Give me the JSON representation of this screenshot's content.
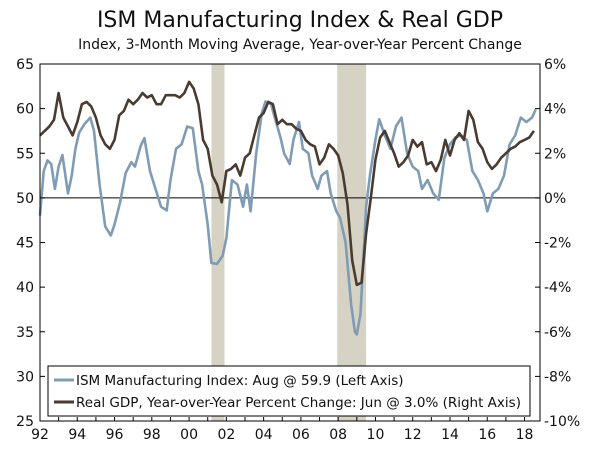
{
  "title": "ISM Manufacturing Index & Real GDP",
  "subtitle": "Index, 3-Month Moving Average, Year-over-Year Percent Change",
  "colors": {
    "ism": "#7f9cb5",
    "gdp": "#4a3b30",
    "recession": "#d6d2c4",
    "frame": "#000000"
  },
  "legend": {
    "ism": "ISM Manufacturing Index: Aug @ 59.9 (Left Axis)",
    "gdp": "Real GDP, Year-over-Year Percent Change: Jun @ 3.0% (Right Axis)"
  },
  "chart_data": {
    "type": "line",
    "grid": false,
    "legend_position": "bottom-left",
    "x_range": [
      1992.0,
      2018.83
    ],
    "y_left_range": [
      25,
      65
    ],
    "y_right_range": [
      -10,
      6
    ],
    "x_tick_labels": [
      "92",
      "94",
      "96",
      "98",
      "00",
      "02",
      "04",
      "06",
      "08",
      "10",
      "12",
      "14",
      "16",
      "18"
    ],
    "x_tick_values": [
      1992,
      1994,
      1996,
      1998,
      2000,
      2002,
      2004,
      2006,
      2008,
      2010,
      2012,
      2014,
      2016,
      2018
    ],
    "y_left_ticks": [
      "25",
      "30",
      "35",
      "40",
      "45",
      "50",
      "55",
      "60",
      "65"
    ],
    "y_right_ticks": [
      "-10%",
      "-8%",
      "-6%",
      "-4%",
      "-2%",
      "0%",
      "2%",
      "4%",
      "6%"
    ],
    "recessions": [
      [
        2001.2,
        2001.9
      ],
      [
        2007.95,
        2009.5
      ]
    ],
    "series": [
      {
        "name": "ISM Manufacturing Index: Aug @ 59.9 (Left Axis)",
        "axis": "left",
        "x": [
          1992.0,
          1992.2,
          1992.4,
          1992.6,
          1992.8,
          1993.0,
          1993.2,
          1993.5,
          1993.7,
          1993.9,
          1994.1,
          1994.4,
          1994.7,
          1994.9,
          1995.2,
          1995.5,
          1995.8,
          1996.0,
          1996.3,
          1996.6,
          1996.9,
          1997.1,
          1997.4,
          1997.6,
          1997.9,
          1998.2,
          1998.5,
          1998.8,
          1999.0,
          1999.3,
          1999.6,
          1999.9,
          2000.2,
          2000.5,
          2000.7,
          2001.0,
          2001.2,
          2001.5,
          2001.8,
          2002.0,
          2002.3,
          2002.6,
          2002.9,
          2003.1,
          2003.3,
          2003.6,
          2003.9,
          2004.1,
          2004.4,
          2004.6,
          2004.9,
          2005.1,
          2005.4,
          2005.6,
          2005.9,
          2006.1,
          2006.4,
          2006.6,
          2006.9,
          2007.1,
          2007.4,
          2007.6,
          2007.9,
          2008.1,
          2008.4,
          2008.7,
          2008.9,
          2009.0,
          2009.2,
          2009.5,
          2009.7,
          2010.0,
          2010.2,
          2010.5,
          2010.8,
          2011.1,
          2011.4,
          2011.7,
          2012.0,
          2012.3,
          2012.5,
          2012.8,
          2013.1,
          2013.4,
          2013.7,
          2014.0,
          2014.3,
          2014.6,
          2014.9,
          2015.2,
          2015.5,
          2015.8,
          2016.0,
          2016.3,
          2016.6,
          2016.9,
          2017.2,
          2017.5,
          2017.8,
          2018.1,
          2018.4,
          2018.6
        ],
        "y": [
          48.0,
          53.0,
          54.2,
          53.8,
          51.0,
          53.5,
          54.8,
          50.5,
          52.5,
          55.5,
          57.3,
          58.3,
          59.0,
          57.5,
          51.5,
          46.8,
          45.8,
          47.0,
          49.5,
          52.8,
          54.0,
          53.5,
          55.8,
          56.7,
          53.0,
          51.0,
          49.0,
          48.6,
          52.0,
          55.5,
          56.0,
          58.0,
          57.8,
          53.0,
          51.5,
          47.0,
          42.7,
          42.6,
          43.5,
          45.5,
          52.0,
          51.5,
          49.0,
          51.5,
          48.5,
          55.0,
          59.5,
          60.8,
          60.5,
          59.0,
          56.8,
          55.0,
          53.8,
          56.5,
          58.5,
          55.5,
          55.0,
          52.5,
          51.0,
          52.5,
          53.0,
          50.5,
          48.5,
          47.8,
          45.0,
          38.0,
          35.0,
          34.7,
          37.0,
          49.0,
          52.5,
          56.5,
          58.8,
          57.0,
          55.5,
          58.0,
          59.0,
          55.0,
          53.5,
          53.0,
          51.0,
          52.0,
          50.5,
          49.8,
          54.5,
          56.0,
          56.8,
          57.0,
          56.5,
          53.0,
          52.0,
          50.5,
          48.5,
          50.5,
          51.0,
          52.5,
          56.0,
          57.0,
          59.0,
          58.5,
          59.0,
          59.9
        ]
      },
      {
        "name": "Real GDP, Year-over-Year Percent Change: Jun @ 3.0% (Right Axis)",
        "axis": "right",
        "x": [
          1992.0,
          1992.25,
          1992.5,
          1992.75,
          1993.0,
          1993.25,
          1993.5,
          1993.75,
          1994.0,
          1994.25,
          1994.5,
          1994.75,
          1995.0,
          1995.25,
          1995.5,
          1995.75,
          1996.0,
          1996.25,
          1996.5,
          1996.75,
          1997.0,
          1997.25,
          1997.5,
          1997.75,
          1998.0,
          1998.25,
          1998.5,
          1998.75,
          1999.0,
          1999.25,
          1999.5,
          1999.75,
          2000.0,
          2000.25,
          2000.5,
          2000.75,
          2001.0,
          2001.25,
          2001.5,
          2001.75,
          2002.0,
          2002.25,
          2002.5,
          2002.75,
          2003.0,
          2003.25,
          2003.5,
          2003.75,
          2004.0,
          2004.25,
          2004.5,
          2004.75,
          2005.0,
          2005.25,
          2005.5,
          2005.75,
          2006.0,
          2006.25,
          2006.5,
          2006.75,
          2007.0,
          2007.25,
          2007.5,
          2007.75,
          2008.0,
          2008.25,
          2008.5,
          2008.75,
          2009.0,
          2009.25,
          2009.5,
          2009.75,
          2010.0,
          2010.25,
          2010.5,
          2010.75,
          2011.0,
          2011.25,
          2011.5,
          2011.75,
          2012.0,
          2012.25,
          2012.5,
          2012.75,
          2013.0,
          2013.25,
          2013.5,
          2013.75,
          2014.0,
          2014.25,
          2014.5,
          2014.75,
          2015.0,
          2015.25,
          2015.5,
          2015.75,
          2016.0,
          2016.25,
          2016.5,
          2016.75,
          2017.0,
          2017.25,
          2017.5,
          2017.75,
          2018.0,
          2018.25,
          2018.5
        ],
        "y": [
          2.8,
          3.0,
          3.2,
          3.5,
          4.7,
          3.6,
          3.2,
          2.8,
          3.4,
          4.2,
          4.3,
          4.1,
          3.6,
          2.8,
          2.4,
          2.2,
          2.6,
          3.7,
          3.9,
          4.4,
          4.2,
          4.4,
          4.7,
          4.5,
          4.6,
          4.2,
          4.2,
          4.6,
          4.6,
          4.6,
          4.5,
          4.7,
          5.2,
          4.9,
          4.2,
          2.6,
          2.2,
          1.0,
          0.6,
          -0.2,
          1.2,
          1.3,
          1.5,
          1.0,
          1.8,
          2.0,
          2.8,
          3.6,
          3.8,
          4.3,
          4.2,
          3.3,
          3.5,
          3.3,
          3.3,
          3.1,
          3.0,
          2.6,
          2.4,
          2.3,
          1.5,
          1.8,
          2.4,
          2.2,
          1.9,
          1.1,
          -0.3,
          -2.8,
          -3.9,
          -3.8,
          -1.6,
          0.0,
          1.7,
          2.7,
          3.0,
          2.5,
          2.0,
          1.4,
          1.6,
          1.9,
          2.6,
          2.3,
          2.5,
          1.5,
          1.6,
          1.2,
          1.7,
          2.6,
          1.9,
          2.6,
          2.9,
          2.6,
          3.9,
          3.5,
          2.5,
          2.2,
          1.6,
          1.3,
          1.5,
          1.8,
          2.0,
          2.2,
          2.3,
          2.5,
          2.6,
          2.7,
          3.0
        ]
      }
    ]
  }
}
